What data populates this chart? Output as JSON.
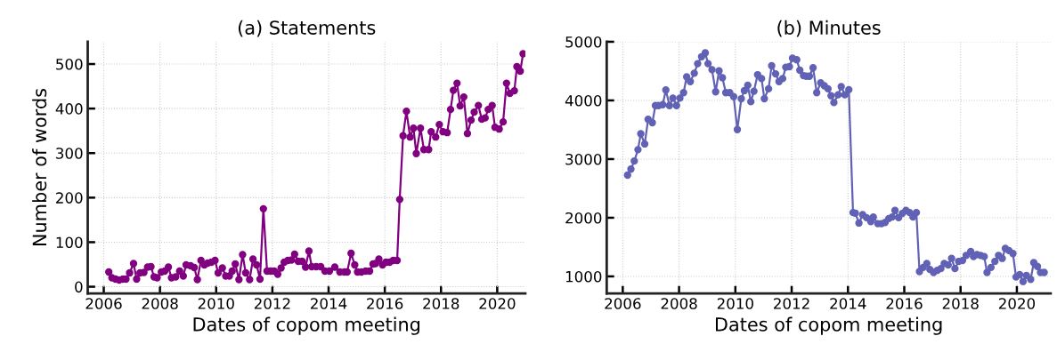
{
  "chart_data": [
    {
      "type": "line",
      "title": "(a) Statements",
      "xlabel": "Dates of copom meeting",
      "ylabel": "Number of words",
      "marker": "circle",
      "line_style": "solid",
      "grid": true,
      "xlim": [
        2005.43,
        2021.0
      ],
      "xticks": [
        2006,
        2008,
        2010,
        2012,
        2014,
        2016,
        2018,
        2020
      ],
      "ylim": [
        -15,
        550
      ],
      "yticks": [
        0,
        100,
        200,
        300,
        400,
        500
      ],
      "series": [
        {
          "color": "#800080",
          "x": [
            2006.18,
            2006.29,
            2006.42,
            2006.55,
            2006.68,
            2006.79,
            2006.92,
            2007.06,
            2007.17,
            2007.29,
            2007.43,
            2007.56,
            2007.68,
            2007.79,
            2007.9,
            2008.05,
            2008.17,
            2008.3,
            2008.41,
            2008.56,
            2008.7,
            2008.83,
            2008.93,
            2009.09,
            2009.22,
            2009.33,
            2009.46,
            2009.58,
            2009.7,
            2009.83,
            2009.96,
            2010.07,
            2010.22,
            2010.34,
            2010.47,
            2010.57,
            2010.68,
            2010.81,
            2010.94,
            2011.05,
            2011.19,
            2011.31,
            2011.44,
            2011.56,
            2011.68,
            2011.81,
            2011.94,
            2012.07,
            2012.19,
            2012.31,
            2012.42,
            2012.55,
            2012.68,
            2012.79,
            2012.92,
            2013.06,
            2013.18,
            2013.3,
            2013.4,
            2013.56,
            2013.72,
            2013.87,
            2014.03,
            2014.22,
            2014.4,
            2014.56,
            2014.66,
            2014.8,
            2014.93,
            2015.03,
            2015.17,
            2015.32,
            2015.46,
            2015.58,
            2015.67,
            2015.79,
            2015.92,
            2016.04,
            2016.17,
            2016.3,
            2016.44,
            2016.53,
            2016.65,
            2016.77,
            2016.9,
            2017.02,
            2017.12,
            2017.27,
            2017.39,
            2017.56,
            2017.65,
            2017.81,
            2017.94,
            2018.07,
            2018.22,
            2018.34,
            2018.44,
            2018.57,
            2018.68,
            2018.81,
            2018.94,
            2019.07,
            2019.18,
            2019.33,
            2019.45,
            2019.57,
            2019.68,
            2019.82,
            2019.92,
            2020.07,
            2020.21,
            2020.33,
            2020.45,
            2020.61,
            2020.7,
            2020.82,
            2020.92
          ],
          "values": [
            33,
            20,
            17,
            15,
            17,
            17,
            31,
            52,
            17,
            31,
            32,
            44,
            45,
            22,
            20,
            33,
            35,
            44,
            20,
            22,
            35,
            24,
            49,
            47,
            43,
            16,
            59,
            49,
            53,
            55,
            59,
            31,
            42,
            24,
            24,
            35,
            51,
            16,
            72,
            31,
            16,
            62,
            49,
            17,
            175,
            35,
            35,
            35,
            28,
            42,
            55,
            59,
            60,
            73,
            57,
            57,
            44,
            80,
            45,
            45,
            45,
            35,
            35,
            44,
            33,
            33,
            33,
            75,
            49,
            33,
            33,
            35,
            35,
            51,
            52,
            62,
            49,
            55,
            55,
            59,
            59,
            196,
            339,
            394,
            336,
            356,
            299,
            356,
            308,
            308,
            348,
            336,
            364,
            348,
            346,
            398,
            441,
            457,
            406,
            426,
            344,
            374,
            392,
            407,
            376,
            379,
            398,
            407,
            358,
            354,
            370,
            457,
            434,
            440,
            494,
            484,
            523
          ]
        }
      ]
    },
    {
      "type": "line",
      "title": "(b) Minutes",
      "xlabel": "Dates of copom meeting",
      "marker": "circle",
      "line_style": "solid",
      "grid": true,
      "xlim": [
        2005.43,
        2021.2
      ],
      "xticks": [
        2006,
        2008,
        2010,
        2012,
        2014,
        2016,
        2018,
        2020
      ],
      "ylim": [
        710,
        5000
      ],
      "yticks": [
        1000,
        2000,
        3000,
        4000,
        5000
      ],
      "series": [
        {
          "color": "#6161b5",
          "x": [
            2006.17,
            2006.29,
            2006.41,
            2006.54,
            2006.64,
            2006.78,
            2006.9,
            2007.05,
            2007.16,
            2007.27,
            2007.42,
            2007.53,
            2007.66,
            2007.78,
            2007.91,
            2008.03,
            2008.16,
            2008.27,
            2008.4,
            2008.54,
            2008.66,
            2008.8,
            2008.93,
            2009.03,
            2009.17,
            2009.3,
            2009.42,
            2009.54,
            2009.66,
            2009.8,
            2009.94,
            2010.07,
            2010.21,
            2010.32,
            2010.44,
            2010.55,
            2010.66,
            2010.79,
            2010.93,
            2011.03,
            2011.18,
            2011.29,
            2011.43,
            2011.55,
            2011.68,
            2011.79,
            2011.92,
            2012.03,
            2012.18,
            2012.29,
            2012.42,
            2012.52,
            2012.63,
            2012.76,
            2012.89,
            2013.03,
            2013.16,
            2013.29,
            2013.4,
            2013.5,
            2013.65,
            2013.76,
            2013.89,
            2014.03,
            2014.18,
            2014.26,
            2014.39,
            2014.52,
            2014.66,
            2014.81,
            2014.9,
            2015.06,
            2015.19,
            2015.32,
            2015.45,
            2015.57,
            2015.67,
            2015.8,
            2015.93,
            2016.06,
            2016.19,
            2016.31,
            2016.43,
            2016.54,
            2016.67,
            2016.8,
            2016.91,
            2017.04,
            2017.17,
            2017.3,
            2017.42,
            2017.56,
            2017.68,
            2017.8,
            2017.93,
            2018.07,
            2018.2,
            2018.36,
            2018.46,
            2018.58,
            2018.71,
            2018.84,
            2018.94,
            2019.08,
            2019.22,
            2019.35,
            2019.48,
            2019.59,
            2019.72,
            2019.86,
            2019.97,
            2020.1,
            2020.22,
            2020.34,
            2020.49,
            2020.6,
            2020.73,
            2020.84,
            2020.97
          ],
          "values": [
            2727,
            2829,
            2967,
            3161,
            3432,
            3258,
            3677,
            3621,
            3912,
            3912,
            3927,
            4178,
            3912,
            4040,
            3912,
            4040,
            4132,
            4402,
            4321,
            4464,
            4627,
            4745,
            4811,
            4627,
            4525,
            4147,
            4504,
            4387,
            4132,
            4132,
            4065,
            3503,
            4029,
            4167,
            4259,
            3978,
            4157,
            4438,
            4372,
            4029,
            4198,
            4591,
            4453,
            4321,
            4372,
            4566,
            4576,
            4719,
            4693,
            4515,
            4423,
            4413,
            4413,
            4556,
            4132,
            4300,
            4249,
            4198,
            4080,
            3963,
            4096,
            4234,
            4096,
            4183,
            2088,
            2078,
            1909,
            2052,
            2001,
            1935,
            2012,
            1899,
            1899,
            1920,
            1986,
            2012,
            2124,
            2001,
            2073,
            2124,
            2088,
            2012,
            2088,
            1082,
            1153,
            1220,
            1118,
            1067,
            1102,
            1133,
            1220,
            1194,
            1307,
            1133,
            1256,
            1271,
            1358,
            1424,
            1338,
            1373,
            1358,
            1338,
            1067,
            1153,
            1256,
            1358,
            1307,
            1476,
            1440,
            1389,
            990,
            1031,
            913,
            1016,
            949,
            1235,
            1169,
            1067,
            1067
          ]
        }
      ]
    }
  ]
}
